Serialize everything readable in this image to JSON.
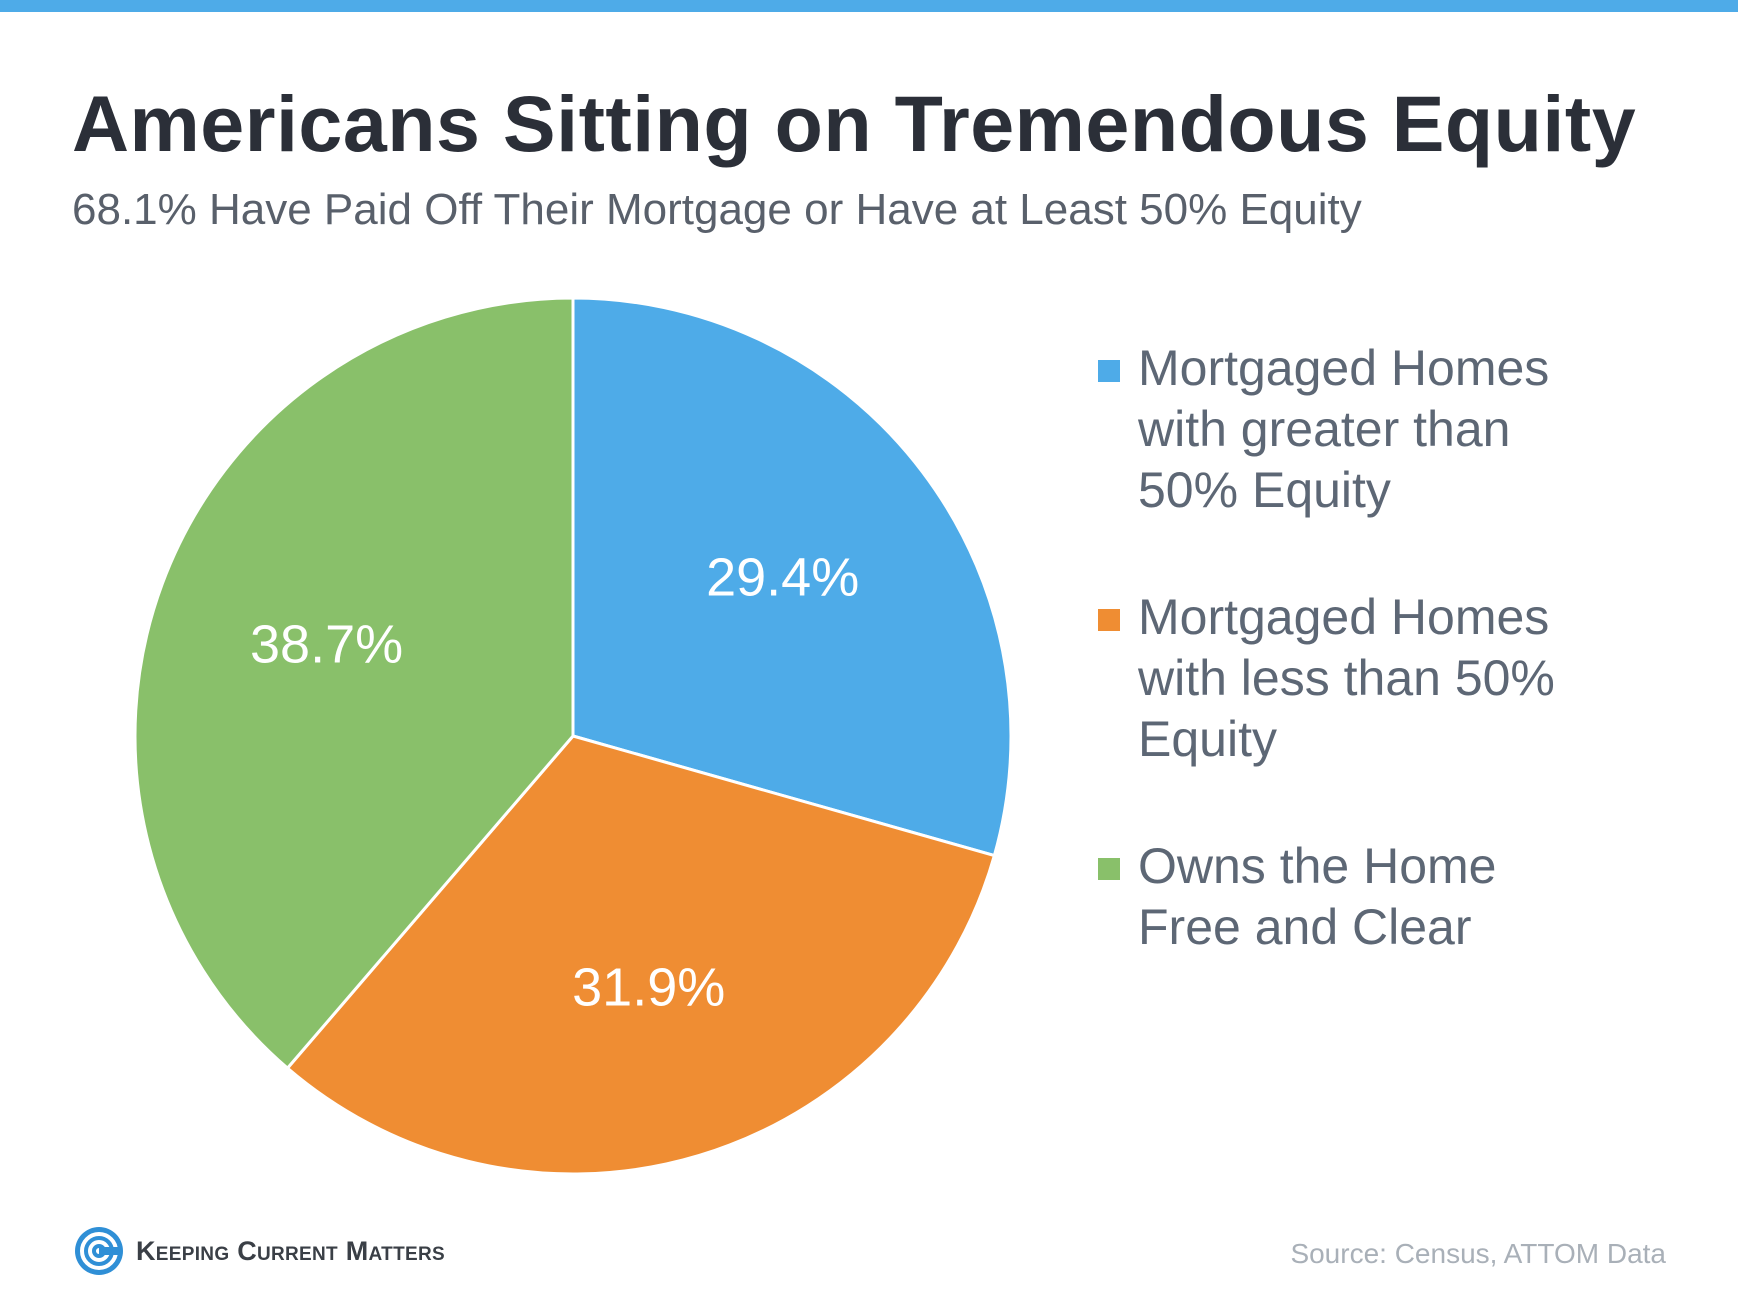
{
  "title": "Americans Sitting on Tremendous Equity",
  "subtitle": "68.1% Have Paid Off Their Mortgage or Have at Least 50% Equity",
  "source": "Source: Census, ATTOM Data",
  "logo": {
    "text": "Keeping Current Matters",
    "icon": "spiral-logo-icon"
  },
  "colors": {
    "blue": "#4eabe8",
    "orange": "#ef8d33",
    "green": "#89c06a",
    "top_bar": "#4eabe8"
  },
  "chart_data": {
    "type": "pie",
    "title": "Americans Sitting on Tremendous Equity",
    "legend_position": "right",
    "slices": [
      {
        "label": "Mortgaged Homes with greater than 50% Equity",
        "value": 29.4,
        "display": "29.4%",
        "color": "#4eabe8"
      },
      {
        "label": "Mortgaged Homes with less than 50% Equity",
        "value": 31.9,
        "display": "31.9%",
        "color": "#ef8d33"
      },
      {
        "label": "Owns the Home Free and Clear",
        "value": 38.7,
        "display": "38.7%",
        "color": "#89c06a"
      }
    ]
  }
}
